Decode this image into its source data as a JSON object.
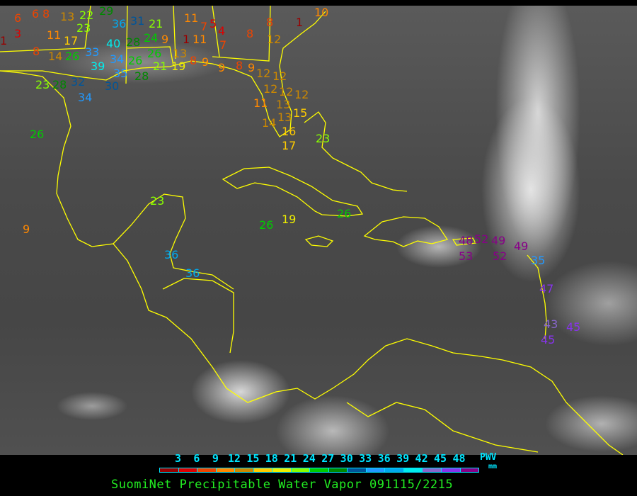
{
  "title": "SuomiNet Precipitable Water Vapor 091115/2215",
  "legend": {
    "units_line1": "PWV",
    "units_line2": "mm",
    "ticks": [
      "3",
      "6",
      "9",
      "12",
      "15",
      "18",
      "21",
      "24",
      "27",
      "30",
      "33",
      "36",
      "39",
      "42",
      "45",
      "48"
    ],
    "colors": [
      "#990000",
      "#dd0000",
      "#ee4400",
      "#ff8800",
      "#cc8800",
      "#ffcc00",
      "#eeee00",
      "#88ff00",
      "#00cc00",
      "#008800",
      "#005599",
      "#2299ff",
      "#00aaee",
      "#00eeee",
      "#8866cc",
      "#8833ee",
      "#880088"
    ]
  },
  "coastline_color": "#ffff00",
  "stations": [
    "6",
    "3",
    "1",
    "6",
    "8",
    "13",
    "22",
    "29",
    "36",
    "31",
    "21",
    "11",
    "7",
    "5",
    "4",
    "7",
    "1",
    "8",
    "8",
    "1",
    "10",
    "12",
    "8",
    "11",
    "17",
    "14",
    "26",
    "33",
    "23",
    "39",
    "40",
    "34",
    "26",
    "28",
    "24",
    "9",
    "26",
    "35",
    "28",
    "21",
    "19",
    "13",
    "11",
    "8",
    "9",
    "9",
    "8",
    "9",
    "12",
    "12",
    "12",
    "12",
    "11",
    "13",
    "12",
    "13",
    "15",
    "14",
    "16",
    "17",
    "23",
    "28",
    "32",
    "34",
    "30",
    "26",
    "23",
    "23",
    "9",
    "26",
    "19",
    "26",
    "36",
    "36",
    "48",
    "52",
    "49",
    "53",
    "52",
    "49",
    "35",
    "47",
    "43",
    "45",
    "45"
  ]
}
